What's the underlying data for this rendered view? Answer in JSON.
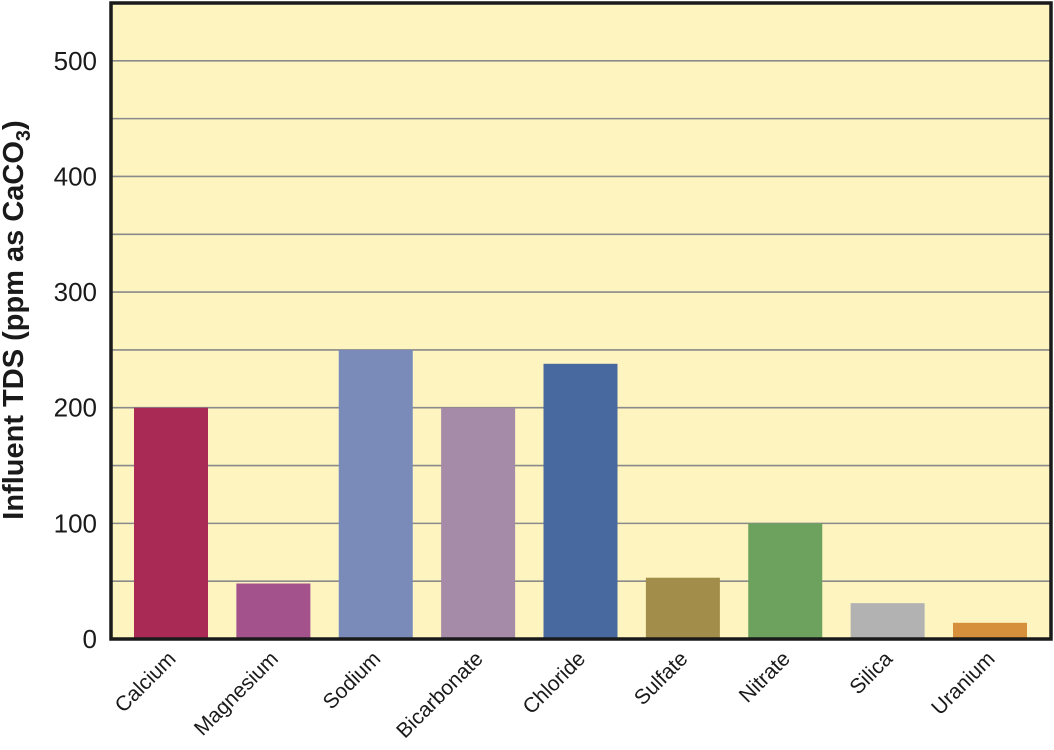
{
  "chart_data": {
    "type": "bar",
    "title": "",
    "xlabel": "",
    "ylabel": {
      "main": "Influent TDS (ppm as CaCO",
      "subscript": "3",
      "close": ")"
    },
    "ylim": [
      0,
      550
    ],
    "yticks": [
      0,
      100,
      200,
      300,
      400,
      500
    ],
    "grid_step": 50,
    "grid": true,
    "legend": "none",
    "categories": [
      "Calcium",
      "Magnesium",
      "Sodium",
      "Bicarbonate",
      "Chloride",
      "Sulfate",
      "Nitrate",
      "Silica",
      "Uranium"
    ],
    "values": [
      200,
      48,
      250,
      200,
      238,
      53,
      100,
      31,
      14
    ],
    "colors": [
      "#a82a55",
      "#a3528c",
      "#7a8bba",
      "#a68ba9",
      "#4769a0",
      "#a38d4a",
      "#6ca25e",
      "#b2b2b2",
      "#d68f3a"
    ],
    "plot_background": "#fdf4c0",
    "frame_color": "#1a1a1a",
    "grid_color": "#8a8a8a"
  }
}
